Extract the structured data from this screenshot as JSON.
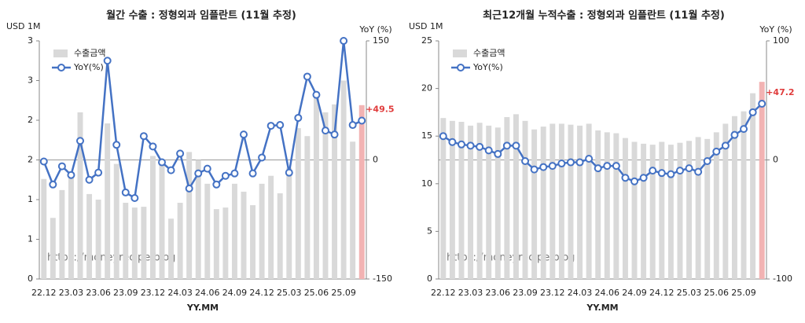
{
  "chart_data": [
    {
      "type": "combo",
      "title": "월간 수출 : 정형외과 임플란트 (11월 추정)",
      "y_label": "USD 1M",
      "y2_label": "YoY (%)",
      "x_label": "YY.MM",
      "watermark": "https://moneyrecipe.blog",
      "legend": "upper left",
      "zero_line": true,
      "categories": [
        "22.12",
        null,
        null,
        "23.03",
        null,
        null,
        "23.06",
        null,
        null,
        "23.09",
        null,
        null,
        "23.12",
        null,
        null,
        "24.03",
        null,
        null,
        "24.06",
        null,
        null,
        "24.09",
        null,
        null,
        "24.12",
        null,
        null,
        "25.03",
        null,
        null,
        "25.06",
        null,
        null,
        "25.09",
        null,
        null
      ],
      "ylim": [
        0,
        3
      ],
      "yticks": [
        0,
        {
          "value": 0.5,
          "label": "1"
        },
        1,
        {
          "value": 1.5,
          "label": "2"
        },
        2,
        {
          "value": 2.5,
          "label": "3"
        },
        3
      ],
      "y2lim": [
        -150,
        150
      ],
      "y2ticks": [
        -150,
        0,
        150
      ],
      "series": [
        {
          "name": "수출금액",
          "type": "bar",
          "color": "#d9d9d9",
          "highlight_color": "#f2b3b3",
          "values": [
            1.26,
            0.77,
            1.12,
            1.3,
            2.1,
            1.07,
            1.0,
            1.96,
            1.45,
            0.96,
            0.9,
            0.91,
            1.55,
            1.5,
            0.76,
            0.96,
            1.6,
            1.5,
            1.2,
            0.88,
            0.9,
            1.2,
            1.1,
            0.93,
            1.2,
            1.3,
            1.08,
            1.4,
            1.9,
            1.8,
            2.3,
            2.1,
            2.2,
            2.5,
            1.73,
            2.19
          ]
        },
        {
          "name": "YoY(%)",
          "type": "line",
          "axis": "y2",
          "color": "#4472c4",
          "value_label_color": "#e03c3c",
          "values": [
            -2,
            -31,
            -8,
            -19,
            24,
            -25,
            -16,
            125,
            19,
            -41,
            -48,
            30,
            17,
            -3,
            -13,
            8,
            -36,
            -17,
            -11,
            -31,
            -20,
            -17,
            32,
            -17,
            3,
            43,
            44,
            -16,
            53,
            105,
            82,
            37,
            32,
            150,
            44,
            49.5
          ],
          "value_labels": [
            null,
            null,
            null,
            null,
            null,
            null,
            null,
            null,
            null,
            null,
            null,
            null,
            null,
            null,
            null,
            null,
            null,
            null,
            null,
            null,
            null,
            null,
            null,
            null,
            null,
            null,
            null,
            null,
            null,
            null,
            null,
            null,
            null,
            null,
            null,
            "+49.5"
          ]
        }
      ]
    },
    {
      "type": "combo",
      "title": "최근12개월 누적수출 : 정형외과 임플란트 (11월 추정)",
      "y_label": "USD 1M",
      "y2_label": "YoY (%)",
      "x_label": "YY.MM",
      "watermark": "https://moneyrecipe.blog",
      "legend": "upper left",
      "zero_line": true,
      "categories": [
        "22.12",
        null,
        null,
        "23.03",
        null,
        null,
        "23.06",
        null,
        null,
        "23.09",
        null,
        null,
        "23.12",
        null,
        null,
        "24.03",
        null,
        null,
        "24.06",
        null,
        null,
        "24.09",
        null,
        null,
        "24.12",
        null,
        null,
        "25.03",
        null,
        null,
        "25.06",
        null,
        null,
        "25.09",
        null,
        null
      ],
      "ylim": [
        0,
        25
      ],
      "yticks": [
        0,
        5,
        10,
        15,
        20,
        25
      ],
      "y2lim": [
        -100,
        100
      ],
      "y2ticks": [
        -100,
        0,
        100
      ],
      "series": [
        {
          "name": "수출금액",
          "type": "bar",
          "color": "#d9d9d9",
          "highlight_color": "#f2b3b3",
          "values": [
            16.9,
            16.6,
            16.5,
            16.1,
            16.4,
            16.1,
            15.9,
            17.0,
            17.3,
            16.6,
            15.7,
            16.0,
            16.3,
            16.3,
            16.2,
            16.1,
            16.3,
            15.6,
            15.4,
            15.3,
            14.8,
            14.4,
            14.2,
            14.1,
            14.4,
            14.1,
            14.3,
            14.5,
            14.9,
            14.7,
            15.4,
            16.3,
            17.1,
            17.6,
            19.5,
            20.7
          ]
        },
        {
          "name": "YoY(%)",
          "type": "line",
          "axis": "y2",
          "color": "#4472c4",
          "value_label_color": "#e03c3c",
          "values": [
            20,
            15,
            13,
            12,
            11,
            8,
            5,
            12,
            12,
            -1,
            -8,
            -6,
            -5,
            -3,
            -2,
            -2,
            1,
            -7,
            -5,
            -5,
            -15,
            -18,
            -15,
            -9,
            -11,
            -12,
            -9,
            -7,
            -10,
            -1,
            7,
            12,
            21,
            26,
            40,
            47.2
          ],
          "value_labels": [
            null,
            null,
            null,
            null,
            null,
            null,
            null,
            null,
            null,
            null,
            null,
            null,
            null,
            null,
            null,
            null,
            null,
            null,
            null,
            null,
            null,
            null,
            null,
            null,
            null,
            null,
            null,
            null,
            null,
            null,
            null,
            null,
            null,
            null,
            null,
            "+47.2"
          ]
        }
      ]
    }
  ]
}
